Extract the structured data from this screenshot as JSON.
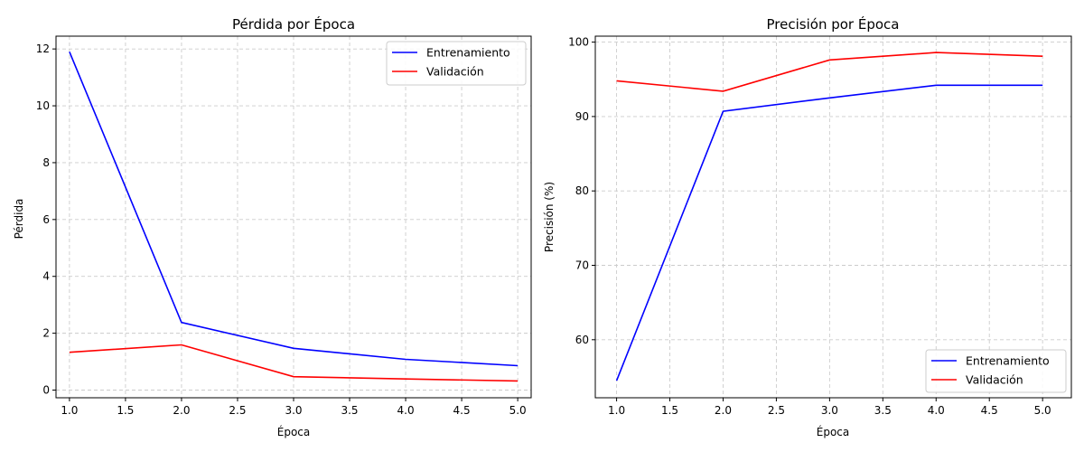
{
  "chart_data": [
    {
      "type": "line",
      "title": "Pérdida por Época",
      "xlabel": "Época",
      "ylabel": "Pérdida",
      "x": [
        1.0,
        2.0,
        3.0,
        4.0,
        5.0
      ],
      "xlim": [
        0.88,
        5.12
      ],
      "ylim": [
        -0.27,
        12.45
      ],
      "xticks": [
        1.0,
        1.5,
        2.0,
        2.5,
        3.0,
        3.5,
        4.0,
        4.5,
        5.0
      ],
      "xtick_labels": [
        "1.0",
        "1.5",
        "2.0",
        "2.5",
        "3.0",
        "3.5",
        "4.0",
        "4.5",
        "5.0"
      ],
      "yticks": [
        0,
        2,
        4,
        6,
        8,
        10,
        12
      ],
      "ytick_labels": [
        "0",
        "2",
        "4",
        "6",
        "8",
        "10",
        "12"
      ],
      "grid": true,
      "legend_position": "top-right",
      "series": [
        {
          "name": "Entrenamiento",
          "color": "#0000ff",
          "values": [
            11.9,
            2.38,
            1.47,
            1.08,
            0.86
          ]
        },
        {
          "name": "Validación",
          "color": "#ff0000",
          "values": [
            1.33,
            1.59,
            0.47,
            0.39,
            0.32
          ]
        }
      ]
    },
    {
      "type": "line",
      "title": "Precisión por Época",
      "xlabel": "Época",
      "ylabel": "Precisión (%)",
      "x": [
        1.0,
        2.0,
        3.0,
        4.0,
        5.0
      ],
      "xlim": [
        0.8,
        5.27
      ],
      "ylim": [
        52.2,
        100.8
      ],
      "xticks": [
        1.0,
        1.5,
        2.0,
        2.5,
        3.0,
        3.5,
        4.0,
        4.5,
        5.0
      ],
      "xtick_labels": [
        "1.0",
        "1.5",
        "2.0",
        "2.5",
        "3.0",
        "3.5",
        "4.0",
        "4.5",
        "5.0"
      ],
      "yticks": [
        60,
        70,
        80,
        90,
        100
      ],
      "ytick_labels": [
        "60",
        "70",
        "80",
        "90",
        "100"
      ],
      "grid": true,
      "legend_position": "bottom-right",
      "series": [
        {
          "name": "Entrenamiento",
          "color": "#0000ff",
          "values": [
            54.5,
            90.7,
            92.5,
            94.2,
            94.2
          ]
        },
        {
          "name": "Validación",
          "color": "#ff0000",
          "values": [
            94.8,
            93.4,
            97.6,
            98.6,
            98.1
          ]
        }
      ]
    }
  ]
}
